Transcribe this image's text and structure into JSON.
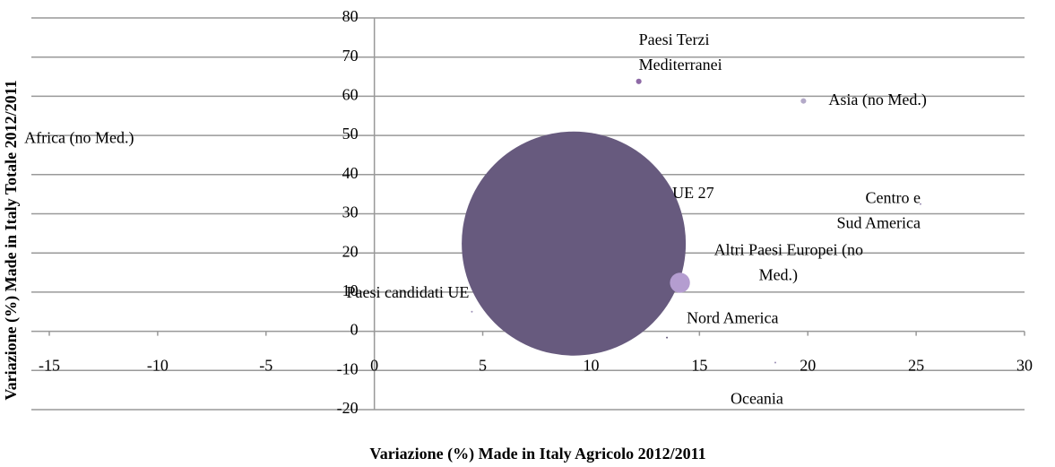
{
  "chart_data": {
    "type": "bubble",
    "x_label": "Variazione (%) Made in Italy Agricolo 2012/2011",
    "y_label": "Variazione (%) Made in Italy Totale 2012/2011",
    "xlim": [
      -15,
      30
    ],
    "xticks": [
      -15,
      -10,
      -5,
      0,
      5,
      10,
      15,
      20,
      25,
      30
    ],
    "ylim": [
      -20,
      80
    ],
    "yticks": [
      -20,
      -10,
      0,
      10,
      20,
      30,
      40,
      50,
      60,
      70,
      80
    ],
    "grid": true,
    "series": [
      {
        "name": "UE 27",
        "color": "#675a7e",
        "x": [
          9.2
        ],
        "values": [
          22.4
        ],
        "sizes": [
          100
        ]
      },
      {
        "name": "Altri Paesi Europei (no Med.)",
        "color": "#b49dd0",
        "x": [
          14.1
        ],
        "values": [
          12.4
        ],
        "sizes": [
          0.8
        ]
      },
      {
        "name": "Paesi Terzi Mediterranei",
        "color": "#8e6aa6",
        "x": [
          12.2
        ],
        "values": [
          63.8
        ],
        "sizes": [
          0.06
        ]
      },
      {
        "name": "Asia (no Med.)",
        "color": "#b3a9c8",
        "x": [
          19.8
        ],
        "values": [
          58.8
        ],
        "sizes": [
          0.06
        ]
      },
      {
        "name": "Africa (no Med.)",
        "color": "#9c8fb5",
        "x": [
          -14.5
        ],
        "values": [
          49
        ],
        "sizes": [
          0.001
        ]
      },
      {
        "name": "Centro e Sud America",
        "color": "#9c8fb5",
        "x": [
          25.2
        ],
        "values": [
          32.5
        ],
        "sizes": [
          0.002
        ]
      },
      {
        "name": "Nord America",
        "color": "#675a7e",
        "x": [
          13.5
        ],
        "values": [
          -1.6
        ],
        "sizes": [
          0.003
        ]
      },
      {
        "name": "Oceania",
        "color": "#9c8fb5",
        "x": [
          18.5
        ],
        "values": [
          -8
        ],
        "sizes": [
          0.001
        ]
      },
      {
        "name": "Paesi candidati UE",
        "color": "#9c8fb5",
        "x": [
          4.5
        ],
        "values": [
          5
        ],
        "sizes": [
          0.001
        ]
      }
    ]
  }
}
